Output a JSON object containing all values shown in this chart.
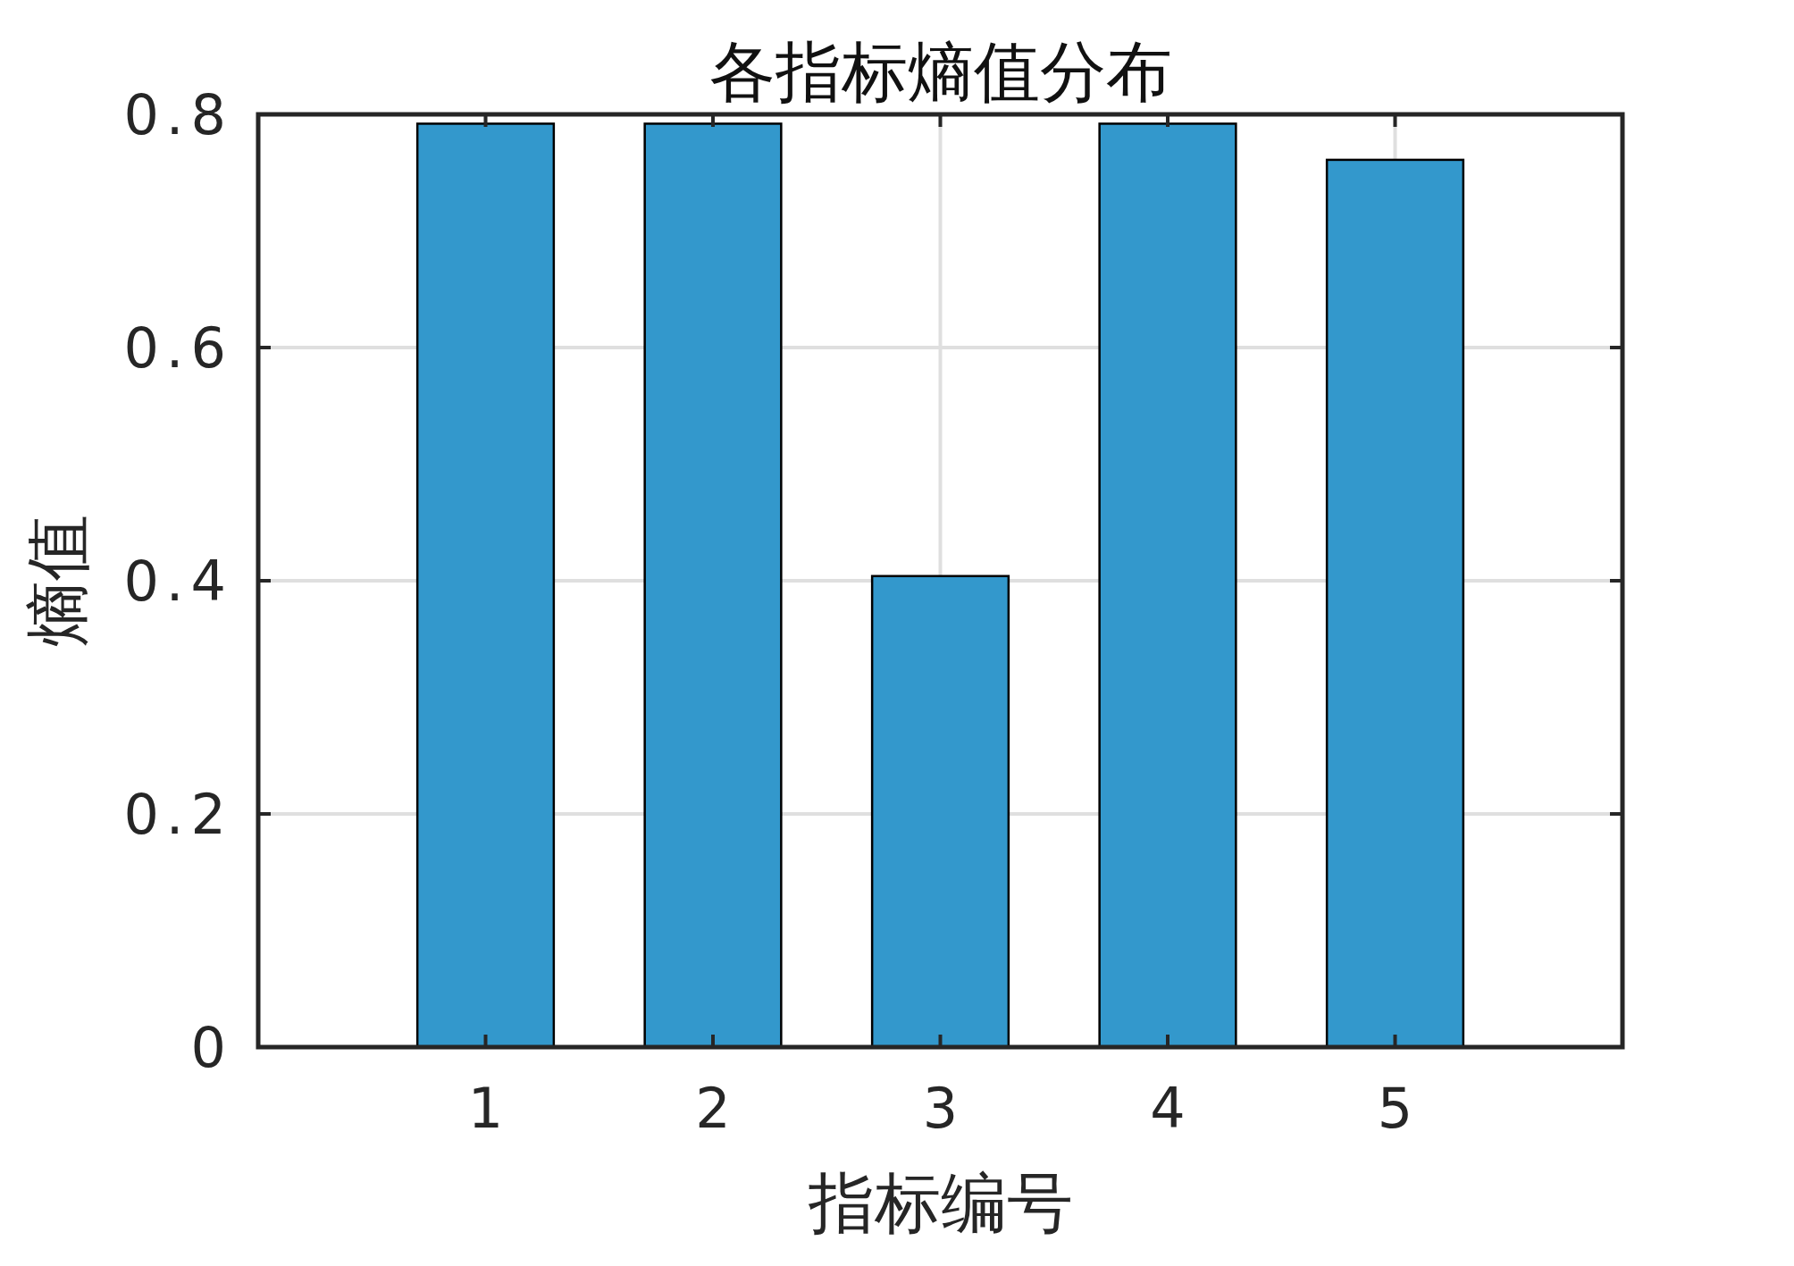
{
  "chart_data": {
    "type": "bar",
    "title": "各指标熵值分布",
    "xlabel": "指标编号",
    "ylabel": "熵值",
    "categories": [
      "1",
      "2",
      "3",
      "4",
      "5"
    ],
    "values": [
      0.792,
      0.792,
      0.404,
      0.792,
      0.761
    ],
    "color": "#3398cc",
    "ylim": [
      0,
      0.8
    ],
    "yticks": [
      0,
      0.2,
      0.4,
      0.6,
      0.8
    ],
    "grid": true
  }
}
